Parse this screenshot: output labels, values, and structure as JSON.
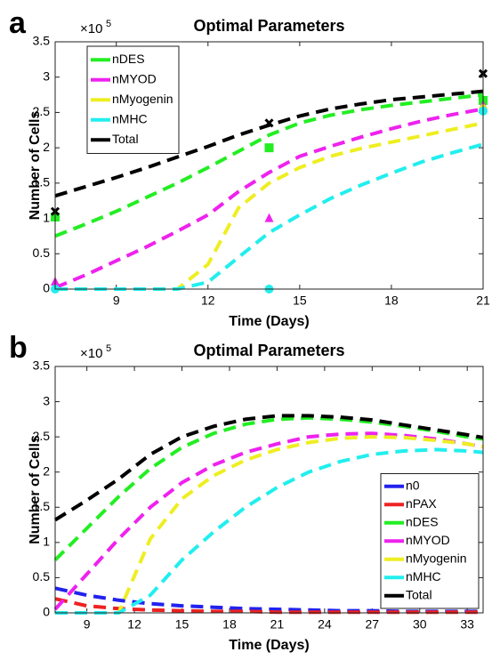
{
  "chart_data": [
    {
      "type": "line",
      "panel_label": "a",
      "title": "Optimal Parameters",
      "xlabel": "Time (Days)",
      "ylabel": "Number of Cells",
      "y_scale": {
        "base": "×10",
        "exponent": "5"
      },
      "xlim": [
        7,
        21
      ],
      "xticks": [
        9,
        12,
        15,
        18,
        21
      ],
      "ylim": [
        0,
        3.5
      ],
      "yticks": [
        0,
        0.5,
        1,
        1.5,
        2,
        2.5,
        3,
        3.5
      ],
      "legend": "upper-left",
      "grid": false,
      "x": [
        7,
        8,
        9,
        10,
        11,
        12,
        13,
        14,
        15,
        16,
        17,
        18,
        19,
        20,
        21
      ],
      "marker_x": [
        7,
        14,
        21
      ],
      "series": [
        {
          "name": "nDES",
          "color": "#22ee22",
          "marker": "square",
          "values": [
            0.75,
            0.92,
            1.1,
            1.3,
            1.5,
            1.72,
            1.95,
            2.18,
            2.35,
            2.46,
            2.54,
            2.6,
            2.65,
            2.7,
            2.75
          ],
          "marker_values": [
            1.02,
            2.0,
            2.67
          ]
        },
        {
          "name": "nMYOD",
          "color": "#ee22ee",
          "marker": "triangle",
          "values": [
            0.02,
            0.2,
            0.4,
            0.6,
            0.82,
            1.05,
            1.38,
            1.65,
            1.88,
            2.02,
            2.15,
            2.27,
            2.38,
            2.47,
            2.55
          ],
          "marker_values": [
            0.1,
            1.0,
            2.6
          ]
        },
        {
          "name": "nMyogenin",
          "color": "#eeee22",
          "marker": "diamond",
          "values": [
            0,
            0,
            0,
            0,
            0,
            0.35,
            1.15,
            1.5,
            1.72,
            1.88,
            1.99,
            2.08,
            2.17,
            2.26,
            2.35
          ],
          "marker_values": [
            null,
            null,
            2.56
          ]
        },
        {
          "name": "nMHC",
          "color": "#22eeee",
          "marker": "circle",
          "values": [
            0,
            0,
            0,
            0,
            0,
            0.1,
            0.45,
            0.8,
            1.05,
            1.28,
            1.47,
            1.64,
            1.8,
            1.93,
            2.05
          ],
          "marker_values": [
            0,
            0,
            2.52
          ]
        },
        {
          "name": "Total",
          "color": "#000000",
          "marker": "cross",
          "values": [
            1.32,
            1.45,
            1.58,
            1.72,
            1.87,
            2.02,
            2.18,
            2.32,
            2.45,
            2.55,
            2.62,
            2.68,
            2.72,
            2.76,
            2.8
          ],
          "marker_values": [
            1.1,
            2.35,
            3.05
          ]
        }
      ]
    },
    {
      "type": "line",
      "panel_label": "b",
      "title": "Optimal Parameters",
      "xlabel": "Time (Days)",
      "ylabel": "Number of Cells",
      "y_scale": {
        "base": "×10",
        "exponent": "5"
      },
      "xlim": [
        7,
        34
      ],
      "xticks": [
        9,
        12,
        15,
        18,
        21,
        24,
        27,
        30,
        33
      ],
      "ylim": [
        0,
        3.5
      ],
      "yticks": [
        0,
        0.5,
        1,
        1.5,
        2,
        2.5,
        3,
        3.5
      ],
      "legend": "lower-right",
      "grid": false,
      "x": [
        7,
        9,
        11,
        13,
        15,
        17,
        19,
        21,
        23,
        25,
        27,
        29,
        31,
        33,
        34
      ],
      "series": [
        {
          "name": "n0",
          "color": "#2222ee",
          "values": [
            0.35,
            0.25,
            0.18,
            0.13,
            0.1,
            0.08,
            0.06,
            0.05,
            0.04,
            0.03,
            0.03,
            0.02,
            0.02,
            0.02,
            0.02
          ]
        },
        {
          "name": "nPAX",
          "color": "#ee2222",
          "values": [
            0.2,
            0.1,
            0.06,
            0.04,
            0.03,
            0.02,
            0.02,
            0.01,
            0.01,
            0.01,
            0.01,
            0.01,
            0.01,
            0.01,
            0.01
          ]
        },
        {
          "name": "nDES",
          "color": "#22ee22",
          "values": [
            0.75,
            1.2,
            1.65,
            2.05,
            2.35,
            2.55,
            2.68,
            2.75,
            2.77,
            2.75,
            2.71,
            2.65,
            2.58,
            2.5,
            2.47
          ]
        },
        {
          "name": "nMYOD",
          "color": "#ee22ee",
          "values": [
            0.05,
            0.55,
            1.05,
            1.5,
            1.85,
            2.1,
            2.28,
            2.4,
            2.5,
            2.54,
            2.55,
            2.52,
            2.47,
            2.4,
            2.36
          ]
        },
        {
          "name": "nMyogenin",
          "color": "#eeee22",
          "values": [
            0,
            0,
            0,
            1.05,
            1.62,
            1.95,
            2.17,
            2.32,
            2.42,
            2.48,
            2.5,
            2.49,
            2.45,
            2.4,
            2.36
          ]
        },
        {
          "name": "nMHC",
          "color": "#22eeee",
          "values": [
            0,
            0,
            0,
            0.25,
            0.75,
            1.15,
            1.5,
            1.78,
            2.0,
            2.15,
            2.25,
            2.3,
            2.32,
            2.3,
            2.28
          ]
        },
        {
          "name": "Total",
          "color": "#000000",
          "values": [
            1.32,
            1.6,
            1.9,
            2.25,
            2.5,
            2.65,
            2.75,
            2.8,
            2.8,
            2.78,
            2.74,
            2.67,
            2.6,
            2.53,
            2.49
          ]
        }
      ]
    }
  ]
}
